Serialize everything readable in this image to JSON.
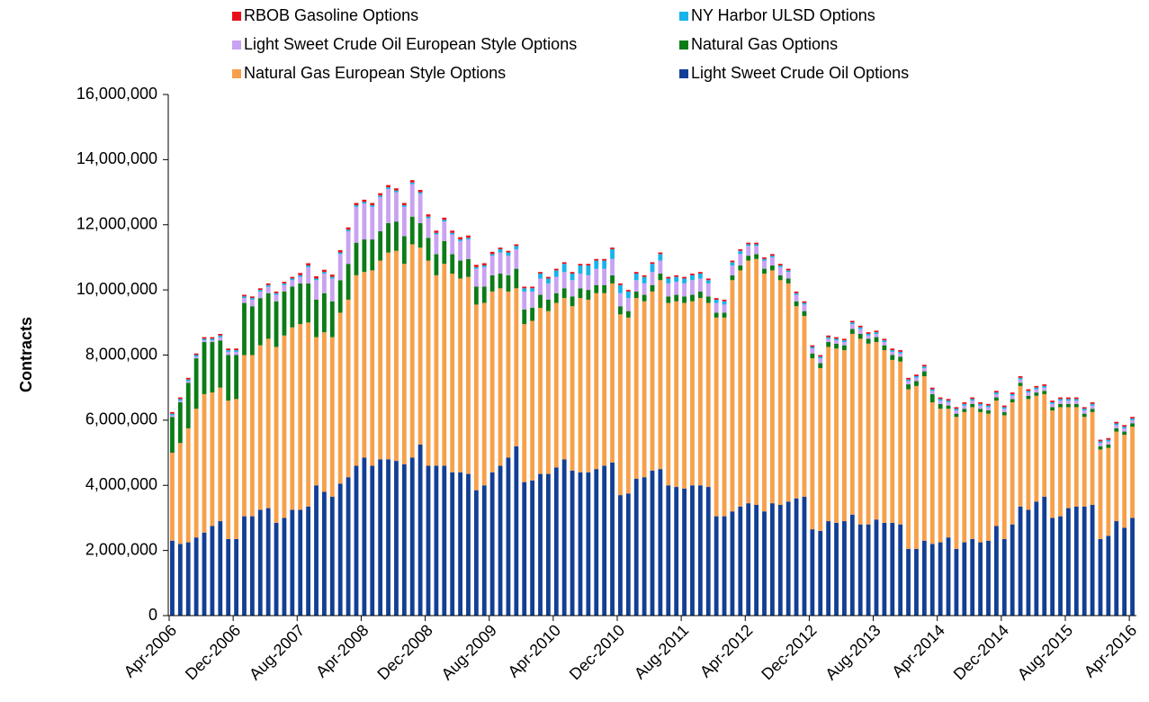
{
  "chart_data": {
    "type": "stacked_bar",
    "y_label": "Contracts",
    "categories": [
      "Apr-2006",
      null,
      null,
      null,
      null,
      null,
      null,
      null,
      "Dec-2006",
      null,
      null,
      null,
      null,
      null,
      null,
      null,
      "Aug-2007",
      null,
      null,
      null,
      null,
      null,
      null,
      null,
      "Apr-2008",
      null,
      null,
      null,
      null,
      null,
      null,
      null,
      "Dec-2008",
      null,
      null,
      null,
      null,
      null,
      null,
      null,
      "Aug-2009",
      null,
      null,
      null,
      null,
      null,
      null,
      null,
      "Apr-2010",
      null,
      null,
      null,
      null,
      null,
      null,
      null,
      "Dec-2010",
      null,
      null,
      null,
      null,
      null,
      null,
      null,
      "Aug-2011",
      null,
      null,
      null,
      null,
      null,
      null,
      null,
      "Apr-2012",
      null,
      null,
      null,
      null,
      null,
      null,
      null,
      "Dec-2012",
      null,
      null,
      null,
      null,
      null,
      null,
      null,
      "Aug-2013",
      null,
      null,
      null,
      null,
      null,
      null,
      null,
      "Apr-2014",
      null,
      null,
      null,
      null,
      null,
      null,
      null,
      "Dec-2014",
      null,
      null,
      null,
      null,
      null,
      null,
      null,
      "Aug-2015",
      null,
      null,
      null,
      null,
      null,
      null,
      null,
      "Apr-2016"
    ],
    "ylim": [
      0,
      16000000
    ],
    "yticks": [
      0,
      {
        "value": 2000000,
        "label": "2,000,000"
      },
      {
        "value": 4000000,
        "label": "4,000,000"
      },
      {
        "value": 6000000,
        "label": "6,000,000"
      },
      {
        "value": 8000000,
        "label": "8,000,000"
      },
      {
        "value": 10000000,
        "label": "10,000,000"
      },
      {
        "value": 12000000,
        "label": "12,000,000"
      },
      {
        "value": 14000000,
        "label": "14,000,000"
      },
      {
        "value": 16000000,
        "label": "16,000,000"
      }
    ],
    "series": [
      {
        "name": "Light Sweet Crude Oil Options",
        "color": "#123f96",
        "values": [
          2300000,
          2200000,
          2250000,
          2400000,
          2550000,
          2750000,
          2900000,
          2350000,
          2350000,
          3050000,
          3050000,
          3250000,
          3300000,
          2850000,
          3000000,
          3250000,
          3250000,
          3350000,
          4000000,
          3800000,
          3650000,
          4050000,
          4250000,
          4600000,
          4850000,
          4600000,
          4800000,
          4800000,
          4750000,
          4650000,
          4850000,
          5250000,
          4600000,
          4600000,
          4600000,
          4400000,
          4400000,
          4350000,
          3850000,
          4000000,
          4400000,
          4600000,
          4850000,
          5200000,
          4100000,
          4150000,
          4350000,
          4350000,
          4550000,
          4800000,
          4450000,
          4400000,
          4400000,
          4500000,
          4600000,
          4700000,
          3700000,
          3750000,
          4200000,
          4250000,
          4450000,
          4500000,
          4000000,
          3950000,
          3900000,
          4000000,
          4000000,
          3950000,
          3050000,
          3050000,
          3200000,
          3350000,
          3450000,
          3400000,
          3200000,
          3450000,
          3400000,
          3500000,
          3600000,
          3650000,
          2650000,
          2600000,
          2900000,
          2850000,
          2900000,
          3100000,
          2800000,
          2800000,
          2950000,
          2850000,
          2850000,
          2800000,
          2050000,
          2050000,
          2300000,
          2200000,
          2250000,
          2400000,
          2050000,
          2250000,
          2350000,
          2250000,
          2300000,
          2750000,
          2350000,
          2800000,
          3350000,
          3250000,
          3500000,
          3650000,
          3000000,
          3050000,
          3300000,
          3350000,
          3350000,
          3400000,
          2350000,
          2450000,
          2900000,
          2700000,
          3000000
        ]
      },
      {
        "name": "Natural Gas European Style Options",
        "color": "#f7a04b",
        "values": [
          2700000,
          3100000,
          3500000,
          3950000,
          4250000,
          4100000,
          4100000,
          4250000,
          4300000,
          4950000,
          4950000,
          5050000,
          5200000,
          5400000,
          5600000,
          5600000,
          5700000,
          5650000,
          4550000,
          4900000,
          4900000,
          5250000,
          5450000,
          5850000,
          5700000,
          6000000,
          6100000,
          6350000,
          6450000,
          6150000,
          6550000,
          6050000,
          6300000,
          5850000,
          6200000,
          6100000,
          5950000,
          6050000,
          5700000,
          5600000,
          5550000,
          5450000,
          5100000,
          4850000,
          4850000,
          4900000,
          5100000,
          5000000,
          5050000,
          4950000,
          5050000,
          5350000,
          5300000,
          5400000,
          5300000,
          5500000,
          5550000,
          5400000,
          5550000,
          5400000,
          5500000,
          5800000,
          5600000,
          5700000,
          5700000,
          5650000,
          5750000,
          5650000,
          6100000,
          6100000,
          7100000,
          7250000,
          7450000,
          7550000,
          7300000,
          7150000,
          6900000,
          6700000,
          5900000,
          5550000,
          5250000,
          5000000,
          5350000,
          5350000,
          5250000,
          5550000,
          5700000,
          5550000,
          5450000,
          5300000,
          5000000,
          5000000,
          4900000,
          5000000,
          5050000,
          4350000,
          4100000,
          3950000,
          4050000,
          4000000,
          4050000,
          4000000,
          3900000,
          3850000,
          3800000,
          3750000,
          3700000,
          3400000,
          3250000,
          3150000,
          3300000,
          3350000,
          3100000,
          3050000,
          2750000,
          2850000,
          2750000,
          2700000,
          2750000,
          2850000,
          2800000
        ]
      },
      {
        "name": "Natural Gas Options",
        "color": "#0c7c17",
        "values": [
          1100000,
          1250000,
          1400000,
          1550000,
          1600000,
          1550000,
          1450000,
          1400000,
          1350000,
          1600000,
          1500000,
          1450000,
          1400000,
          1400000,
          1350000,
          1250000,
          1250000,
          1200000,
          1150000,
          1200000,
          1100000,
          1000000,
          1100000,
          1000000,
          1000000,
          950000,
          900000,
          900000,
          900000,
          850000,
          850000,
          750000,
          700000,
          650000,
          700000,
          600000,
          550000,
          550000,
          550000,
          500000,
          500000,
          450000,
          500000,
          600000,
          450000,
          400000,
          400000,
          350000,
          300000,
          300000,
          300000,
          300000,
          300000,
          250000,
          250000,
          250000,
          250000,
          200000,
          200000,
          200000,
          200000,
          200000,
          200000,
          200000,
          200000,
          200000,
          200000,
          200000,
          150000,
          150000,
          150000,
          150000,
          150000,
          150000,
          150000,
          150000,
          150000,
          150000,
          150000,
          150000,
          150000,
          150000,
          150000,
          150000,
          150000,
          150000,
          150000,
          150000,
          150000,
          150000,
          150000,
          150000,
          150000,
          150000,
          150000,
          250000,
          150000,
          100000,
          100000,
          100000,
          100000,
          100000,
          100000,
          100000,
          100000,
          100000,
          100000,
          100000,
          100000,
          100000,
          100000,
          100000,
          100000,
          100000,
          100000,
          100000,
          100000,
          100000,
          100000,
          100000,
          100000
        ]
      },
      {
        "name": "Light Sweet Crude Oil European Style Options",
        "color": "#c9a2f2",
        "values": [
          50000,
          50000,
          50000,
          50000,
          50000,
          50000,
          100000,
          100000,
          100000,
          150000,
          200000,
          200000,
          200000,
          200000,
          200000,
          200000,
          200000,
          500000,
          600000,
          600000,
          700000,
          800000,
          1000000,
          1100000,
          1100000,
          1000000,
          1050000,
          1050000,
          900000,
          900000,
          1000000,
          900000,
          600000,
          600000,
          600000,
          600000,
          600000,
          600000,
          550000,
          600000,
          600000,
          650000,
          600000,
          600000,
          550000,
          500000,
          500000,
          500000,
          500000,
          500000,
          500000,
          450000,
          450000,
          500000,
          500000,
          500000,
          400000,
          400000,
          350000,
          350000,
          400000,
          400000,
          400000,
          400000,
          400000,
          450000,
          400000,
          400000,
          300000,
          250000,
          300000,
          350000,
          300000,
          250000,
          250000,
          250000,
          250000,
          200000,
          200000,
          200000,
          150000,
          150000,
          100000,
          100000,
          100000,
          150000,
          150000,
          100000,
          100000,
          100000,
          100000,
          100000,
          100000,
          100000,
          100000,
          100000,
          100000,
          100000,
          100000,
          100000,
          100000,
          100000,
          100000,
          100000,
          100000,
          100000,
          100000,
          100000,
          100000,
          100000,
          100000,
          100000,
          100000,
          100000,
          100000,
          100000,
          100000,
          100000,
          100000,
          100000,
          100000
        ]
      },
      {
        "name": "NY Harbor ULSD Options",
        "color": "#18b4e9",
        "values": [
          50000,
          50000,
          50000,
          50000,
          50000,
          50000,
          50000,
          50000,
          50000,
          50000,
          50000,
          50000,
          50000,
          50000,
          50000,
          50000,
          50000,
          50000,
          50000,
          50000,
          50000,
          50000,
          50000,
          50000,
          50000,
          50000,
          50000,
          50000,
          50000,
          50000,
          50000,
          50000,
          50000,
          50000,
          50000,
          50000,
          50000,
          50000,
          50000,
          50000,
          50000,
          100000,
          100000,
          100000,
          100000,
          100000,
          150000,
          150000,
          200000,
          250000,
          200000,
          250000,
          300000,
          250000,
          250000,
          300000,
          250000,
          200000,
          200000,
          200000,
          250000,
          200000,
          150000,
          150000,
          150000,
          150000,
          150000,
          100000,
          100000,
          100000,
          100000,
          100000,
          50000,
          50000,
          50000,
          50000,
          50000,
          50000,
          50000,
          50000,
          50000,
          50000,
          50000,
          50000,
          50000,
          50000,
          50000,
          50000,
          50000,
          50000,
          50000,
          50000,
          50000,
          50000,
          50000,
          50000,
          50000,
          50000,
          50000,
          50000,
          50000,
          50000,
          50000,
          50000,
          50000,
          50000,
          50000,
          50000,
          50000,
          50000,
          50000,
          50000,
          50000,
          50000,
          50000,
          50000,
          50000,
          50000,
          50000,
          50000,
          50000
        ]
      },
      {
        "name": "RBOB Gasoline Options",
        "color": "#e8111b",
        "values": [
          50000,
          50000,
          50000,
          50000,
          50000,
          50000,
          50000,
          50000,
          50000,
          50000,
          50000,
          50000,
          50000,
          50000,
          50000,
          50000,
          70000,
          70000,
          70000,
          70000,
          70000,
          70000,
          70000,
          70000,
          70000,
          70000,
          70000,
          70000,
          70000,
          70000,
          70000,
          70000,
          70000,
          70000,
          70000,
          70000,
          70000,
          70000,
          70000,
          70000,
          70000,
          50000,
          50000,
          50000,
          50000,
          50000,
          50000,
          50000,
          50000,
          50000,
          50000,
          50000,
          50000,
          50000,
          50000,
          50000,
          50000,
          50000,
          50000,
          50000,
          50000,
          50000,
          50000,
          50000,
          50000,
          50000,
          50000,
          50000,
          50000,
          50000,
          50000,
          50000,
          50000,
          50000,
          50000,
          50000,
          50000,
          50000,
          50000,
          50000,
          50000,
          50000,
          50000,
          50000,
          50000,
          50000,
          50000,
          50000,
          50000,
          50000,
          50000,
          50000,
          50000,
          50000,
          50000,
          50000,
          50000,
          50000,
          50000,
          50000,
          50000,
          50000,
          50000,
          50000,
          50000,
          50000,
          50000,
          50000,
          50000,
          50000,
          50000,
          50000,
          50000,
          50000,
          50000,
          50000,
          50000,
          50000,
          50000,
          50000,
          50000
        ]
      }
    ]
  }
}
